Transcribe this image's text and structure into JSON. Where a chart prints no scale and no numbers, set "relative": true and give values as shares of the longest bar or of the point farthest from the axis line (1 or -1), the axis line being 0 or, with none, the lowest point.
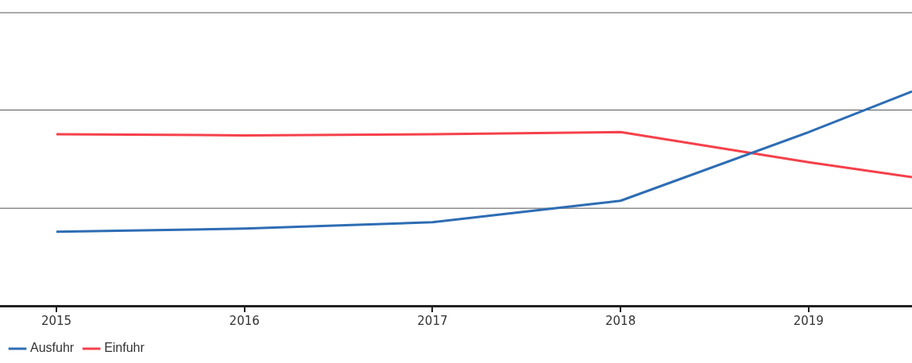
{
  "chart_data": {
    "type": "line",
    "relative": true,
    "x": [
      2015,
      2016,
      2017,
      2018,
      2019,
      2019.55
    ],
    "xlim": [
      2014.7,
      2019.55
    ],
    "xticks": [
      2015,
      2016,
      2017,
      2018,
      2019
    ],
    "series": [
      {
        "name": "Ausfuhr",
        "color": "#2e6db4",
        "values": [
          0.345,
          0.36,
          0.39,
          0.49,
          0.81,
          1
        ]
      },
      {
        "name": "Einfuhr",
        "color": "#f5414b",
        "values": [
          0.8,
          0.795,
          0.8,
          0.81,
          0.67,
          0.6
        ]
      }
    ],
    "ref_lines": [
      {
        "axis": "y",
        "value": 0.455,
        "color": "#555555"
      },
      {
        "axis": "y",
        "value": 0.913,
        "color": "#555555"
      },
      {
        "axis": "y",
        "value": 1.367,
        "color": "#555555"
      }
    ],
    "legend": "bottom left",
    "marker": "none",
    "line_style": "solid"
  }
}
